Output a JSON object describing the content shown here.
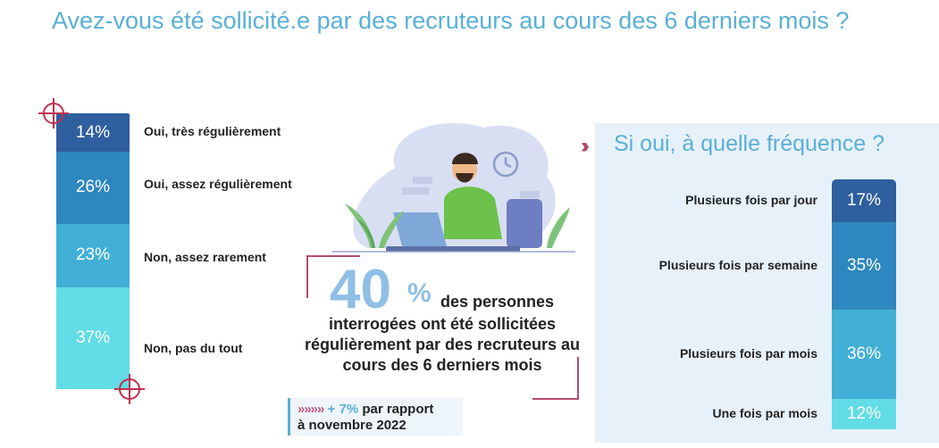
{
  "title": "Avez-vous été sollicité.e par des recruteurs au cours des 6 derniers mois ?",
  "colors": {
    "title": "#5aafd6",
    "accent": "#b34d6b",
    "bar_palette": [
      "#2f5f9e",
      "#2f87bf",
      "#42b0d6",
      "#62dce6"
    ]
  },
  "chart_data": [
    {
      "type": "bar",
      "stacked": true,
      "orientation": "vertical",
      "categories": [
        "Oui, très régulièrement",
        "Oui, assez régulièrement",
        "Non, assez rarement",
        "Non, pas du tout"
      ],
      "values": [
        14,
        26,
        23,
        37
      ],
      "value_labels": [
        "14%",
        "26%",
        "23%",
        "37%"
      ],
      "unit": "%",
      "legend": "right"
    },
    {
      "type": "bar",
      "stacked": true,
      "orientation": "vertical",
      "title": "Si oui, à quelle fréquence ?",
      "categories": [
        "Plusieurs fois par jour",
        "Plusieurs fois par semaine",
        "Plusieurs fois par mois",
        "Une fois par mois"
      ],
      "values": [
        17,
        35,
        36,
        12
      ],
      "value_labels": [
        "17%",
        "35%",
        "36%",
        "12%"
      ],
      "unit": "%",
      "legend": "left"
    }
  ],
  "highlight": {
    "value": "40",
    "unit": "%",
    "text_first": "des personnes",
    "text_rest": "interrogées ont été sollicitées régulièrement par des recruteurs au cours des 6 derniers mois"
  },
  "comparison": {
    "arrows": "»»»»",
    "delta": "+ 7%",
    "text_a": "par rapport",
    "text_b": "à novembre 2022"
  },
  "icons": [
    "crosshair-icon",
    "double-chevron-icon",
    "clock-icon",
    "laptop-icon",
    "plant-icon"
  ]
}
